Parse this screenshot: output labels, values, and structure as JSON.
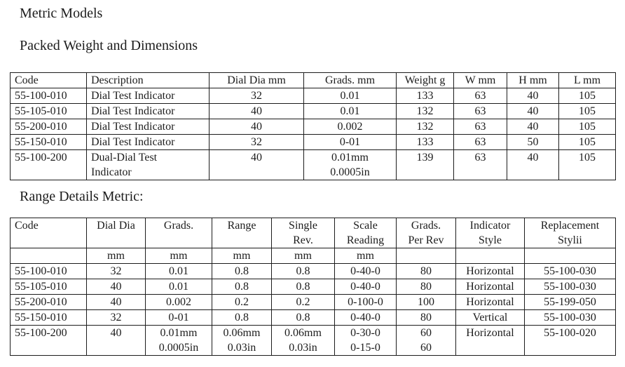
{
  "headings": {
    "metric_models": "Metric Models",
    "packed_weight": "Packed Weight and Dimensions",
    "range_details": "Range Details Metric:"
  },
  "packed_weight_table": {
    "headers": [
      "Code",
      "Description",
      "Dial Dia mm",
      "Grads. mm",
      "Weight g",
      "W mm",
      "H mm",
      "L mm"
    ],
    "rows": [
      [
        "55-100-010",
        "Dial Test Indicator",
        "32",
        "0.01",
        "133",
        "63",
        "40",
        "105"
      ],
      [
        "55-105-010",
        "Dial Test Indicator",
        "40",
        "0.01",
        "132",
        "63",
        "40",
        "105"
      ],
      [
        "55-200-010",
        "Dial Test Indicator",
        "40",
        "0.002",
        "132",
        "63",
        "40",
        "105"
      ],
      [
        "55-150-010",
        "Dial Test Indicator",
        "32",
        "0-01",
        "133",
        "63",
        "50",
        "105"
      ],
      [
        "55-100-200",
        "Dual-Dial Test\nIndicator",
        "40",
        "0.01mm\n0.0005in",
        "139",
        "63",
        "40",
        "105"
      ]
    ]
  },
  "range_details_table": {
    "headers": [
      "Code",
      "Dial Dia",
      "Grads.",
      "Range",
      "Single\nRev.",
      "Scale\nReading",
      "Grads.\nPer Rev",
      "Indicator\nStyle",
      "Replacement\nStylii"
    ],
    "units": [
      "",
      "mm",
      "mm",
      "mm",
      "mm",
      "mm",
      "",
      "",
      ""
    ],
    "rows": [
      [
        "55-100-010",
        "32",
        "0.01",
        "0.8",
        "0.8",
        "0-40-0",
        "80",
        "Horizontal",
        "55-100-030"
      ],
      [
        "55-105-010",
        "40",
        "0.01",
        "0.8",
        "0.8",
        "0-40-0",
        "80",
        "Horizontal",
        "55-100-030"
      ],
      [
        "55-200-010",
        "40",
        "0.002",
        "0.2",
        "0.2",
        "0-100-0",
        "100",
        "Horizontal",
        "55-199-050"
      ],
      [
        "55-150-010",
        "32",
        "0-01",
        "0.8",
        "0.8",
        "0-40-0",
        "80",
        "Vertical",
        "55-100-030"
      ],
      [
        "55-100-200",
        "40",
        "0.01mm\n0.0005in",
        "0.06mm\n0.03in",
        "0.06mm\n0.03in",
        "0-30-0\n0-15-0",
        "60\n60",
        "Horizontal",
        "55-100-020"
      ]
    ]
  }
}
